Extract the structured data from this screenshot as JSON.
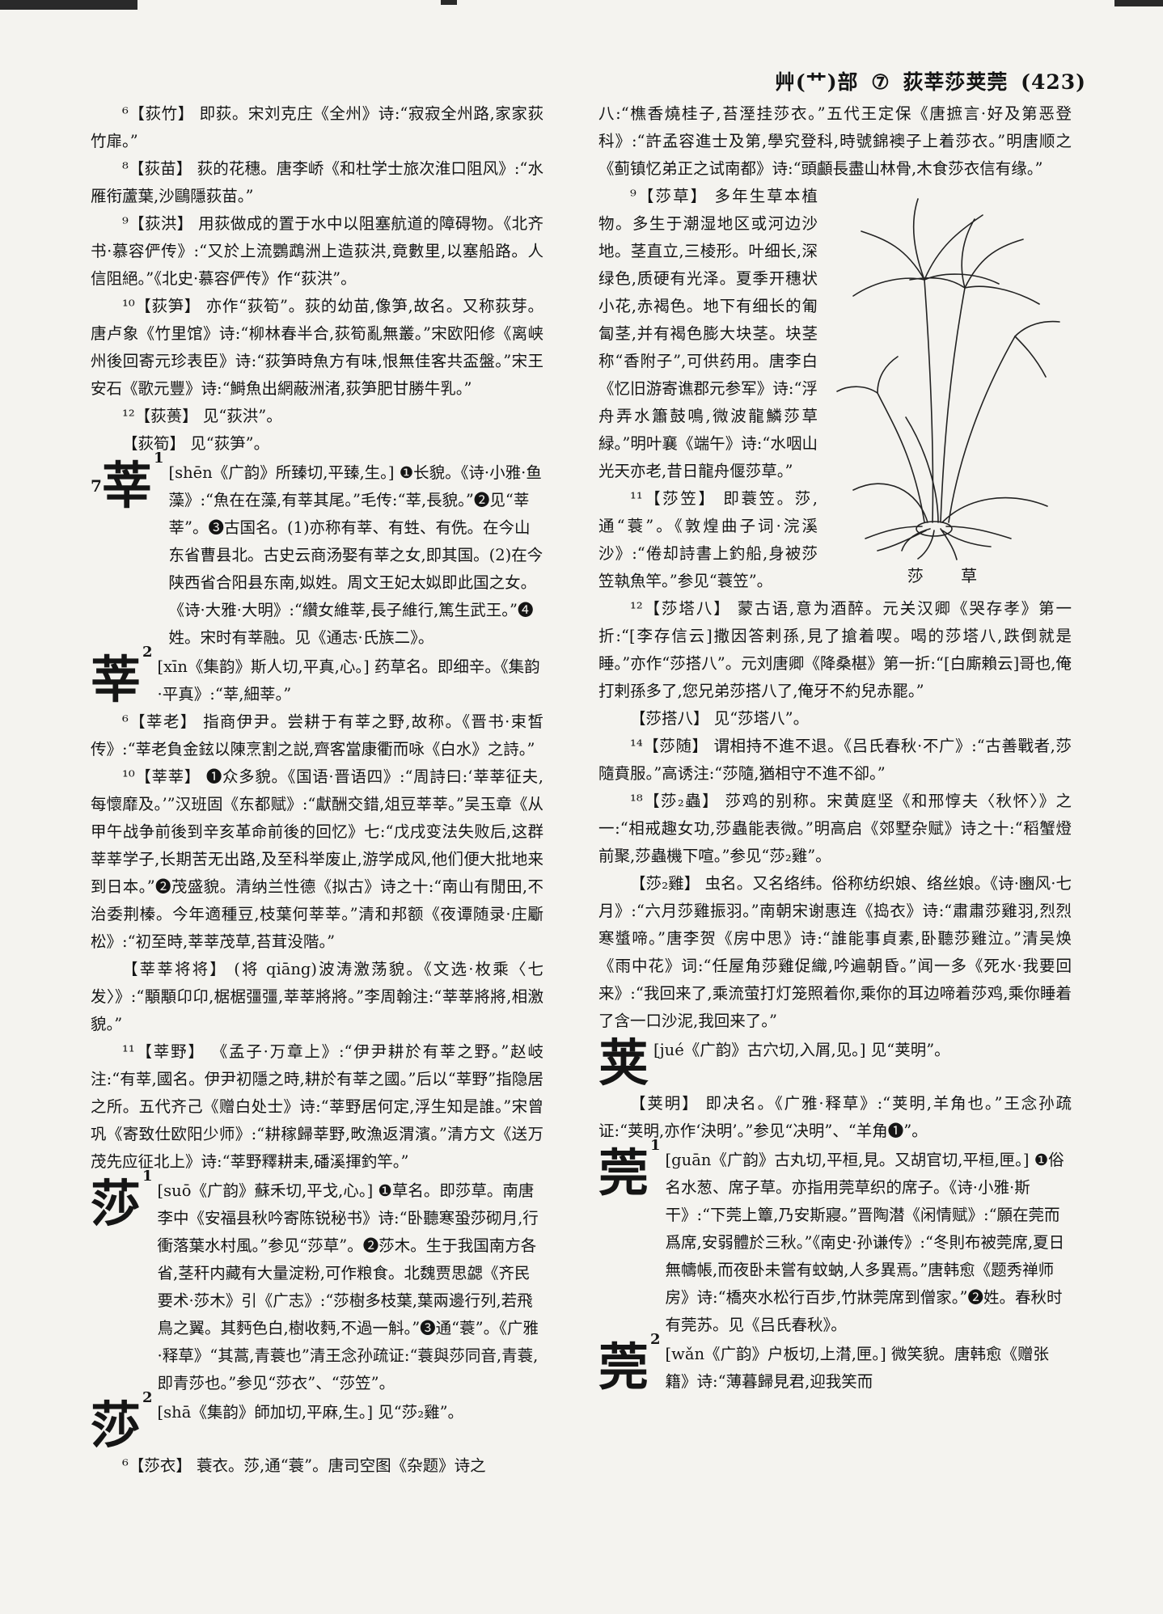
{
  "header": {
    "section": "艸(艹)部",
    "strokes": "⑦",
    "chars": "荻莘莎荚莞",
    "page": "(423)"
  },
  "left_column": [
    {
      "type": "p",
      "text": "⁶【荻竹】 即荻。宋刘克庄《全州》诗:“寂寂全州路,家家荻竹扉。”"
    },
    {
      "type": "p",
      "text": "⁸【荻苗】 荻的花穗。唐李峤《和杜学士旅次淮口阻风》:“水雁衔蘆葉,沙鷗隱荻苗。”"
    },
    {
      "type": "p",
      "text": "⁹【荻洪】 用荻做成的置于水中以阻塞航道的障碍物。《北齐书·慕容俨传》:“又於上流鸚鵡洲上造荻洪,竟數里,以塞船路。人信阻絕。”《北史·慕容俨传》作“荻洪”。"
    },
    {
      "type": "p",
      "text": "¹⁰【荻笋】 亦作“荻筍”。荻的幼苗,像笋,故名。又称荻芽。唐卢象《竹里馆》诗:“柳林春半合,荻筍亂無叢。”宋欧阳修《离峡州後回寄元珍表臣》诗:“荻笋時魚方有味,恨無佳客共盃盤。”宋王安石《歌元豐》诗:“鰣魚出網蔽洲渚,荻笋肥甘勝牛乳。”"
    },
    {
      "type": "p",
      "text": "¹²【荻蒉】 见“荻洪”。"
    },
    {
      "type": "p",
      "text": "【荻筍】 见“荻笋”。"
    },
    {
      "type": "hw",
      "char": "莘",
      "sup": "1",
      "stroke": "7",
      "text": "[shēn《广韵》所臻切,平臻,生。] ❶长貌。《诗·小雅·鱼藻》:“魚在在藻,有莘其尾。”毛传:“莘,長貌。”❷见“莘莘”。❸古国名。(1)亦称有莘、有甡、有侁。在今山东省曹县北。古史云商汤娶有莘之女,即其国。(2)在今陕西省合阳县东南,姒姓。周文王妃太姒即此国之女。《诗·大雅·大明》:“纘女維莘,長子維行,篤生武王。”❹姓。宋时有莘融。见《通志·氏族二》。"
    },
    {
      "type": "hw",
      "char": "莘",
      "sup": "2",
      "text": "[xīn《集韵》斯人切,平真,心。] 药草名。即细辛。《集韵·平真》:“莘,細莘。”"
    },
    {
      "type": "p",
      "text": "⁶【莘老】 指商伊尹。尝耕于有莘之野,故称。《晋书·束皙传》:“莘老負金鉉以陳烹割之説,齊客當康衢而咏《白水》之詩。”"
    },
    {
      "type": "p",
      "text": "¹⁰【莘莘】 ❶众多貌。《国语·晋语四》:“周詩曰:‘莘莘征夫,每懷靡及。’”汉班固《东都赋》:“獻酬交錯,俎豆莘莘。”吴玉章《从甲午战争前後到辛亥革命前後的回忆》七:“戊戌变法失败后,这群莘莘学子,长期苦无出路,及至科举废止,游学成风,他们便大批地来到日本。”❷茂盛貌。清纳兰性德《拟古》诗之十:“南山有閒田,不治委荆榛。今年適種豆,枝葉何莘莘。”清和邦额《夜谭随录·庄斸松》:“初至時,莘莘茂草,苔茸没階。”"
    },
    {
      "type": "p",
      "text": "【莘莘将将】 (将 qiāng)波涛激荡貌。《文选·枚乘〈七发〉》:“顒顒卬卬,椐椐彊彊,莘莘將將。”李周翰注:“莘莘將將,相激貌。”"
    },
    {
      "type": "p",
      "text": "¹¹【莘野】 《孟子·万章上》:“伊尹耕於有莘之野。”赵岐注:“有莘,國名。伊尹初隱之時,耕於有莘之國。”后以“莘野”指隐居之所。五代齐己《赠白处士》诗:“莘野居何定,浮生知是誰。”宋曾巩《寄致仕欧阳少师》:“耕稼歸莘野,畋漁返渭濱。”清方文《送万茂先应征北上》诗:“莘野釋耕耒,磻溪揮釣竿。”"
    },
    {
      "type": "hw",
      "char": "莎",
      "sup": "1",
      "text": "[suō《广韵》蘇禾切,平戈,心。] ❶草名。即莎草。南唐李中《安福县秋吟寄陈锐秘书》诗:“卧聽寒蛩莎砌月,行衝落葉水村風。”参见“莎草”。❷莎木。生于我国南方各省,茎秆内藏有大量淀粉,可作粮食。北魏贾思勰《齐民要术·莎木》引《广志》:“莎樹多枝葉,葉兩邊行列,若飛鳥之翼。其麪色白,樹收麪,不過一斛。”❸通“蓑”。《广雅·释草》“其蒿,青蓑也”清王念孙疏证:“蓑與莎同音,青蓑,即青莎也。”参见“莎衣”、“莎笠”。"
    },
    {
      "type": "hw",
      "char": "莎",
      "sup": "2",
      "text": "[shā《集韵》師加切,平麻,生。] 见“莎₂雞”。"
    },
    {
      "type": "p",
      "text": "⁶【莎衣】 蓑衣。莎,通“蓑”。唐司空图《杂题》诗之"
    }
  ],
  "right_column_top": "八:“樵香燒桂子,苔溼挂莎衣。”五代王定保《唐摭言·好及第恶登科》:“許孟容進士及第,學究登科,時號錦襖子上着莎衣。”明唐顺之《蓟镇忆弟正之试南都》诗:“頭顱長盡山林骨,木食莎衣信有缘。”",
  "figure": {
    "caption": "莎 草",
    "icon": "sedge-plant-illustration"
  },
  "right_column_wrapped": [
    {
      "type": "p",
      "text": "⁹【莎草】 多年生草本植物。多生于潮湿地区或河边沙地。茎直立,三棱形。叶细长,深绿色,质硬有光泽。夏季开穗状小花,赤褐色。地下有细长的匍匐茎,并有褐色膨大块茎。块茎称“香附子”,可供药用。唐李白《忆旧游寄谯郡元参军》诗:“浮舟弄水簫鼓鳴,微波龍鱗莎草緑。”明叶襄《端午》诗:“水咽山光天亦老,昔日龍舟偃莎草。”"
    },
    {
      "type": "p",
      "text": "¹¹【莎笠】 即蓑笠。莎,通“蓑”。《敦煌曲子词·浣溪沙》:“倦却詩書上釣船,身被莎笠執魚竿。”参见“蓑笠”。"
    }
  ],
  "right_column": [
    {
      "type": "p",
      "text": "¹²【莎塔八】 蒙古语,意为酒醉。元关汉卿《哭存孝》第一折:“[李存信云]撒因答剌孫,見了搶着喫。喝的莎塔八,跌倒就是睡。”亦作“莎搭八”。元刘唐卿《降桑椹》第一折:“[白廝賴云]哥也,俺打剌孫多了,您兄弟莎搭八了,俺牙不約兒赤罷。”"
    },
    {
      "type": "p",
      "text": "【莎搭八】 见“莎塔八”。"
    },
    {
      "type": "p",
      "text": "¹⁴【莎随】 谓相持不進不退。《吕氏春秋·不广》:“古善戰者,莎隨賁服。”高诱注:“莎隨,猶相守不進不卻。”"
    },
    {
      "type": "p",
      "text": "¹⁸【莎₂蟲】 莎鸡的别称。宋黄庭坚《和邢惇夫〈秋怀〉》之一:“相戒趣女功,莎蟲能表微。”明高启《郊墅杂赋》诗之十:“稻蟹燈前聚,莎蟲機下喧。”参见“莎₂雞”。"
    },
    {
      "type": "p",
      "text": "【莎₂雞】 虫名。又名络纬。俗称纺织娘、络丝娘。《诗·豳风·七月》:“六月莎雞振羽。”南朝宋谢惠连《捣衣》诗:“肅肅莎雞羽,烈烈寒螿啼。”唐李贺《房中思》诗:“誰能事貞素,卧聽莎雞泣。”清吴焕《雨中花》词:“任屋角莎雞促織,吟遍朝昏。”闻一多《死水·我要回来》:“我回来了,乘流萤打灯笼照着你,乘你的耳边啼着莎鸡,乘你睡着了含一口沙泥,我回来了。”"
    },
    {
      "type": "hw",
      "char": "荚",
      "sup": "",
      "text": "[jué《广韵》古穴切,入屑,见。] 见“荚明”。"
    },
    {
      "type": "p",
      "text": "【荚明】 即决名。《广雅·释草》:“荚明,羊角也。”王念孙疏证:“荚明,亦作‘決明’。”参见“决明”、“羊角❶”。"
    },
    {
      "type": "hw",
      "char": "莞",
      "sup": "1",
      "text": "[guān《广韵》古丸切,平桓,見。又胡官切,平桓,匣。] ❶俗名水葱、席子草。亦指用莞草织的席子。《诗·小雅·斯干》:“下莞上簟,乃安斯寢。”晋陶潜《闲情赋》:“願在莞而爲席,安弱體於三秋。”《南史·孙谦传》:“冬則布被莞席,夏日無幬帳,而夜卧未嘗有蚊蚋,人多異焉。”唐韩愈《题秀禅师房》诗:“橋夾水松行百步,竹牀莞席到僧家。”❷姓。春秋时有莞苏。见《吕氏春秋》。"
    },
    {
      "type": "hw",
      "char": "莞",
      "sup": "2",
      "text": "[wǎn《广韵》户板切,上潸,匣。] 微笑貌。唐韩愈《赠张籍》诗:“薄暮歸見君,迎我笑而"
    }
  ]
}
